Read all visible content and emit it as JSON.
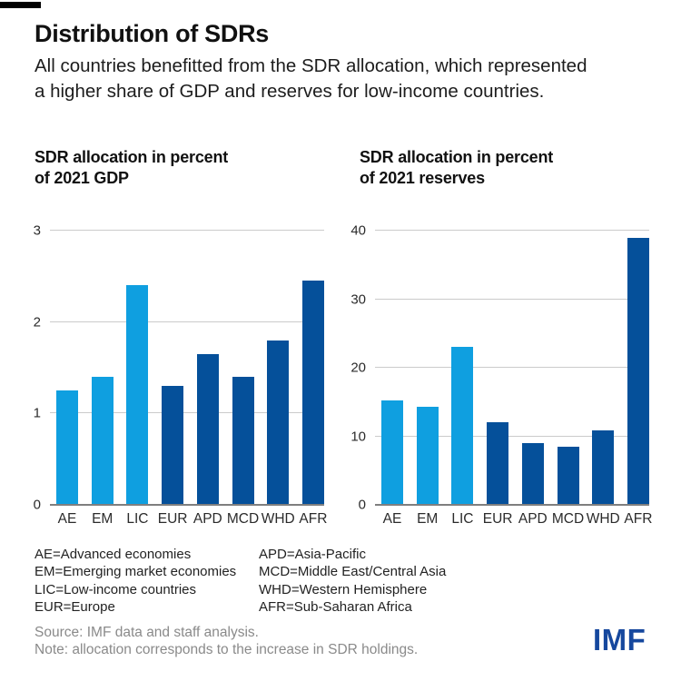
{
  "header": {
    "title": "Distribution of SDRs",
    "subtitle_lines": [
      "All countries benefitted from the SDR allocation, which represented",
      "a higher share of GDP and reserves for low-income countries."
    ]
  },
  "chart_data": [
    {
      "type": "bar",
      "title": "SDR allocation in percent of 2021 GDP",
      "title_lines": [
        "SDR allocation in percent",
        "of 2021 GDP"
      ],
      "categories": [
        "AE",
        "EM",
        "LIC",
        "EUR",
        "APD",
        "MCD",
        "WHD",
        "AFR"
      ],
      "values": [
        1.25,
        1.4,
        2.4,
        1.3,
        1.65,
        1.4,
        1.8,
        2.45
      ],
      "bar_colors": [
        "#0F9FE0",
        "#0F9FE0",
        "#0F9FE0",
        "#05509A",
        "#05509A",
        "#05509A",
        "#05509A",
        "#05509A"
      ],
      "xlabel": "",
      "ylabel": "",
      "ylim": [
        0,
        3
      ],
      "yticks": [
        0,
        1,
        2,
        3
      ],
      "grid": true,
      "legend_position": "none"
    },
    {
      "type": "bar",
      "title": "SDR allocation in percent of 2021 reserves",
      "title_lines": [
        "SDR allocation in percent",
        "of 2021 reserves"
      ],
      "categories": [
        "AE",
        "EM",
        "LIC",
        "EUR",
        "APD",
        "MCD",
        "WHD",
        "AFR"
      ],
      "values": [
        15.2,
        14.3,
        23,
        12,
        9,
        8.5,
        10.8,
        39
      ],
      "bar_colors": [
        "#0F9FE0",
        "#0F9FE0",
        "#0F9FE0",
        "#05509A",
        "#05509A",
        "#05509A",
        "#05509A",
        "#05509A"
      ],
      "xlabel": "",
      "ylabel": "",
      "ylim": [
        0,
        40
      ],
      "yticks": [
        0,
        10,
        20,
        30,
        40
      ],
      "grid": true,
      "legend_position": "none"
    }
  ],
  "abbreviations": {
    "column1": [
      "AE=Advanced economies",
      "EM=Emerging market economies",
      "LIC=Low-income countries",
      "EUR=Europe"
    ],
    "column2": [
      "APD=Asia-Pacific",
      "MCD=Middle East/Central Asia",
      "WHD=Western Hemisphere",
      "AFR=Sub-Saharan Africa"
    ]
  },
  "footer": {
    "source": "Source: IMF data and staff analysis.",
    "note": "Note: allocation corresponds to the increase in SDR holdings.",
    "logo_text": "IMF"
  },
  "colors": {
    "light_blue": "#0F9FE0",
    "dark_blue": "#05509A",
    "gridline": "#cbcbcb",
    "axis_line": "#7f7f7f",
    "text_dark": "#1d1d1d",
    "footer_gray": "#8a8a8a",
    "logo_blue": "#16489E"
  }
}
